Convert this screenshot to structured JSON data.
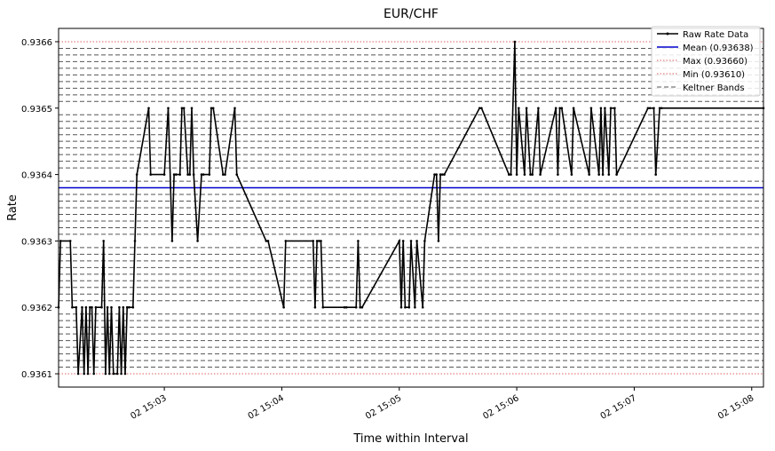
{
  "chart_data": {
    "type": "line",
    "title": "EUR/CHF",
    "xlabel": "Time within Interval",
    "ylabel": "Rate",
    "xlim": [
      "02 15:02:06",
      "02 15:08:06"
    ],
    "ylim": [
      0.93608,
      0.93662
    ],
    "x_ticks": [
      "02 15:03",
      "02 15:04",
      "02 15:05",
      "02 15:06",
      "02 15:07",
      "02 15:08"
    ],
    "y_ticks": [
      "0.9361",
      "0.9362",
      "0.9363",
      "0.9364",
      "0.9365",
      "0.9366"
    ],
    "legend_position": "top-right",
    "legend": [
      "Raw Rate Data",
      "Mean (0.93638)",
      "Max (0.93660)",
      "Min (0.93610)",
      "Keltner Bands"
    ],
    "mean": 0.93638,
    "max": 0.9366,
    "min": 0.9361,
    "colors": {
      "raw": "#000000",
      "mean": "#0000cc",
      "maxmin": "#e06060",
      "bands": "#555555"
    },
    "keltner_bands": [
      0.93611,
      0.93612,
      0.93613,
      0.93614,
      0.93615,
      0.93616,
      0.93617,
      0.93618,
      0.93619,
      0.93621,
      0.93622,
      0.93623,
      0.93624,
      0.93625,
      0.93626,
      0.93627,
      0.93628,
      0.93629,
      0.93631,
      0.93632,
      0.93633,
      0.93634,
      0.93635,
      0.93636,
      0.93637,
      0.93639,
      0.93641,
      0.93642,
      0.93643,
      0.93644,
      0.93645,
      0.93646,
      0.93647,
      0.93648,
      0.93649,
      0.93651,
      0.93652,
      0.93653,
      0.93654,
      0.93655,
      0.93656,
      0.93657,
      0.93658,
      0.93659
    ],
    "series": [
      {
        "name": "Raw Rate Data",
        "x": [
          "02 15:02:06",
          "02 15:02:07",
          "02 15:02:12",
          "02 15:02:13",
          "02 15:02:15",
          "02 15:02:16",
          "02 15:02:18",
          "02 15:02:19",
          "02 15:02:20",
          "02 15:02:21",
          "02 15:02:22",
          "02 15:02:23",
          "02 15:02:24",
          "02 15:02:25",
          "02 15:02:28",
          "02 15:02:29",
          "02 15:02:30",
          "02 15:02:31",
          "02 15:02:32",
          "02 15:02:33",
          "02 15:02:34",
          "02 15:02:36",
          "02 15:02:37",
          "02 15:02:38",
          "02 15:02:39",
          "02 15:02:40",
          "02 15:02:41",
          "02 15:02:42",
          "02 15:02:44",
          "02 15:02:45",
          "02 15:02:46",
          "02 15:02:52",
          "02 15:02:53",
          "02 15:03:00",
          "02 15:03:02",
          "02 15:03:04",
          "02 15:03:05",
          "02 15:03:06",
          "02 15:03:08",
          "02 15:03:09",
          "02 15:03:10",
          "02 15:03:12",
          "02 15:03:13",
          "02 15:03:14",
          "02 15:03:15",
          "02 15:03:17",
          "02 15:03:19",
          "02 15:03:20",
          "02 15:03:23",
          "02 15:03:24",
          "02 15:03:25",
          "02 15:03:30",
          "02 15:03:31",
          "02 15:03:36",
          "02 15:03:37",
          "02 15:03:52",
          "02 15:03:53",
          "02 15:04:01",
          "02 15:04:02",
          "02 15:04:16",
          "02 15:04:17",
          "02 15:04:18",
          "02 15:04:19",
          "02 15:04:20",
          "02 15:04:21",
          "02 15:04:32",
          "02 15:04:33",
          "02 15:04:38",
          "02 15:04:39",
          "02 15:04:40",
          "02 15:04:41",
          "02 15:05:00",
          "02 15:05:01",
          "02 15:05:02",
          "02 15:05:03",
          "02 15:05:05",
          "02 15:05:06",
          "02 15:05:08",
          "02 15:05:09",
          "02 15:05:12",
          "02 15:05:13",
          "02 15:05:18",
          "02 15:05:19",
          "02 15:05:20",
          "02 15:05:21",
          "02 15:05:22",
          "02 15:05:23",
          "02 15:05:41",
          "02 15:05:42",
          "02 15:05:56",
          "02 15:05:57",
          "02 15:05:59",
          "02 15:06:00",
          "02 15:06:01",
          "02 15:06:04",
          "02 15:06:05",
          "02 15:06:07",
          "02 15:06:08",
          "02 15:06:11",
          "02 15:06:12",
          "02 15:06:20",
          "02 15:06:21",
          "02 15:06:22",
          "02 15:06:23",
          "02 15:06:28",
          "02 15:06:29",
          "02 15:06:37",
          "02 15:06:38",
          "02 15:06:42",
          "02 15:06:43",
          "02 15:06:44",
          "02 15:06:45",
          "02 15:06:47",
          "02 15:06:48",
          "02 15:06:50",
          "02 15:06:51",
          "02 15:07:07",
          "02 15:07:08",
          "02 15:07:10",
          "02 15:07:11",
          "02 15:07:13",
          "02 15:07:14",
          "02 15:08:06"
        ],
        "values": [
          0.9362,
          0.9363,
          0.9363,
          0.9362,
          0.9362,
          0.9361,
          0.9362,
          0.9361,
          0.9362,
          0.9361,
          0.9362,
          0.9362,
          0.9361,
          0.9362,
          0.9362,
          0.9363,
          0.9361,
          0.9362,
          0.9361,
          0.9362,
          0.9361,
          0.9361,
          0.9362,
          0.9361,
          0.9362,
          0.9361,
          0.9362,
          0.9362,
          0.9362,
          0.9363,
          0.9364,
          0.9365,
          0.9364,
          0.9364,
          0.9365,
          0.9363,
          0.9364,
          0.9364,
          0.9364,
          0.9365,
          0.9365,
          0.9364,
          0.9364,
          0.9365,
          0.9364,
          0.9363,
          0.9364,
          0.9364,
          0.9364,
          0.9365,
          0.9365,
          0.9364,
          0.9364,
          0.9365,
          0.9364,
          0.9363,
          0.9363,
          0.9362,
          0.9363,
          0.9363,
          0.9362,
          0.9363,
          0.9363,
          0.9363,
          0.9362,
          0.9362,
          0.9362,
          0.9362,
          0.9363,
          0.9362,
          0.9362,
          0.9363,
          0.9362,
          0.9363,
          0.9362,
          0.9362,
          0.9363,
          0.9362,
          0.9363,
          0.9362,
          0.9363,
          0.9364,
          0.9364,
          0.9363,
          0.9364,
          0.9364,
          0.9364,
          0.9365,
          0.9365,
          0.9364,
          0.9364,
          0.9366,
          0.9364,
          0.9365,
          0.9364,
          0.9365,
          0.9364,
          0.9364,
          0.9365,
          0.9364,
          0.9365,
          0.9364,
          0.9365,
          0.9365,
          0.9364,
          0.9365,
          0.9364,
          0.9365,
          0.9364,
          0.9365,
          0.9364,
          0.9365,
          0.9364,
          0.9365,
          0.9365,
          0.9364,
          0.9365,
          0.9365,
          0.9365,
          0.9364,
          0.9365,
          0.9365,
          0.9365
        ]
      }
    ]
  }
}
